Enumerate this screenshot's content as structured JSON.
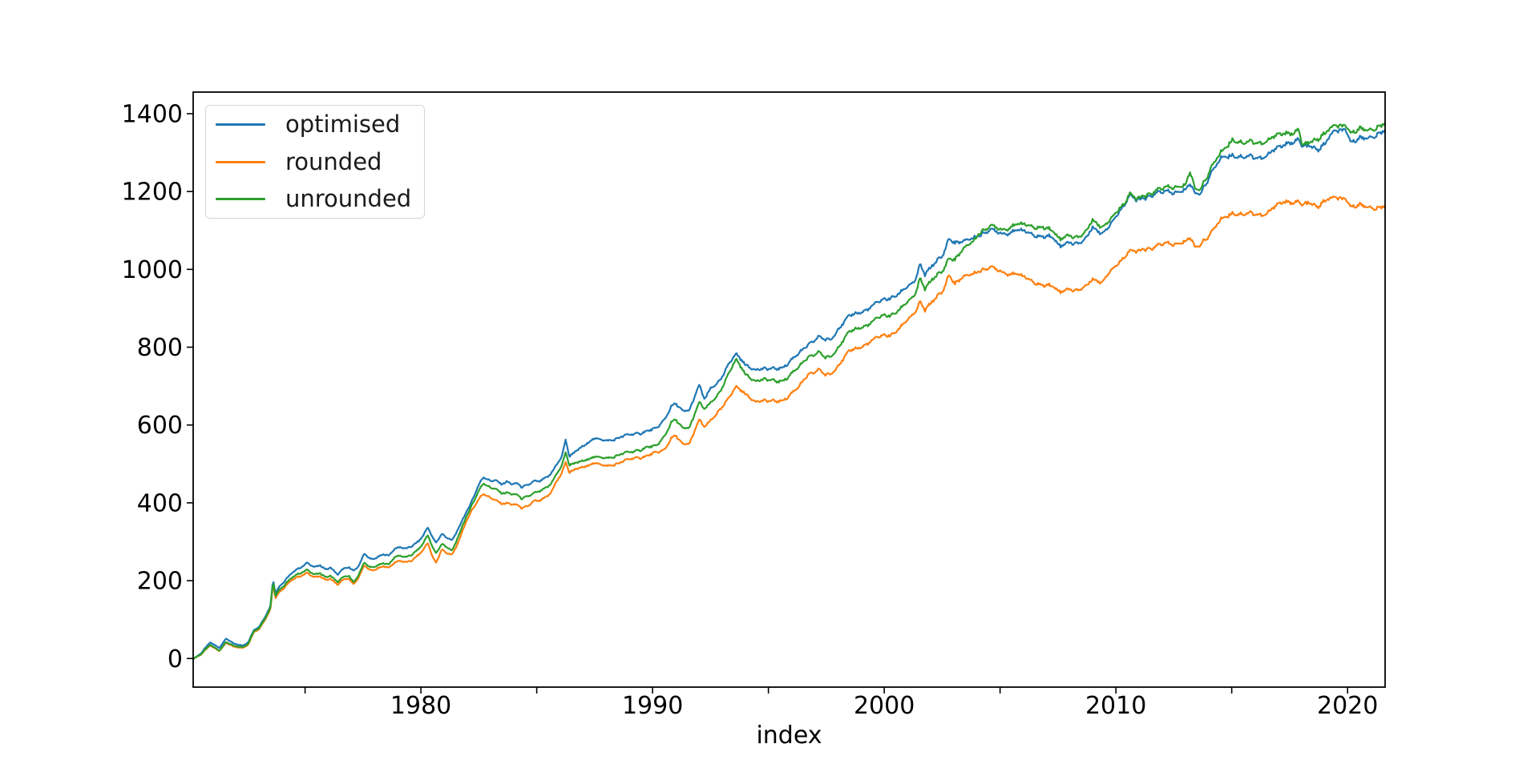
{
  "figure": {
    "background": "#ffffff"
  },
  "chart_data": {
    "type": "line",
    "title": "",
    "xlabel": "index",
    "ylabel": "",
    "grid": false,
    "legend_position": "upper left",
    "axis_color": "#000000",
    "xlim": [
      1970.17,
      2021.62
    ],
    "ylim": [
      -73.5,
      1455.5
    ],
    "xticks_all": [
      1975,
      1980,
      1985,
      1990,
      1995,
      2000,
      2005,
      2010,
      2015,
      2020
    ],
    "xticks_labeled": [
      1980,
      1990,
      2000,
      2010,
      2020
    ],
    "yticks": [
      0,
      200,
      400,
      600,
      800,
      1000,
      1200,
      1400
    ],
    "x": [
      1970.2,
      1970.5,
      1970.9,
      1971.3,
      1971.6,
      1971.9,
      1972.3,
      1972.55,
      1972.8,
      1973.0,
      1973.3,
      1973.5,
      1973.62,
      1973.72,
      1973.9,
      1974.1,
      1974.3,
      1974.6,
      1974.9,
      1975.1,
      1975.4,
      1975.65,
      1975.9,
      1976.1,
      1976.4,
      1976.65,
      1976.9,
      1977.1,
      1977.35,
      1977.55,
      1977.72,
      1977.9,
      1978.1,
      1978.4,
      1978.6,
      1978.85,
      1979.1,
      1979.35,
      1979.6,
      1979.9,
      1980.1,
      1980.3,
      1980.5,
      1980.65,
      1980.9,
      1981.1,
      1981.35,
      1981.6,
      1981.9,
      1982.15,
      1982.45,
      1982.7,
      1983.0,
      1983.2,
      1983.45,
      1983.7,
      1983.95,
      1984.15,
      1984.35,
      1984.6,
      1984.85,
      1985.1,
      1985.35,
      1985.6,
      1985.85,
      1986.1,
      1986.25,
      1986.4,
      1986.65,
      1987.0,
      1987.45,
      1988.0,
      1988.6,
      1989.2,
      1989.75,
      1990.14,
      1990.5,
      1990.8,
      1991.0,
      1991.3,
      1991.6,
      1992.0,
      1992.25,
      1992.5,
      1992.9,
      1993.3,
      1993.6,
      1994.0,
      1994.45,
      1994.9,
      1995.4,
      1995.8,
      1996.3,
      1996.7,
      1997.2,
      1997.45,
      1997.7,
      1998.0,
      1998.5,
      1998.9,
      1999.4,
      1999.9,
      2000.3,
      2000.8,
      2001.3,
      2001.55,
      2001.75,
      2002.05,
      2002.5,
      2002.8,
      2003.05,
      2003.4,
      2003.9,
      2004.1,
      2004.6,
      2005.05,
      2005.5,
      2005.9,
      2006.4,
      2006.85,
      2007.2,
      2007.6,
      2007.9,
      2008.25,
      2008.6,
      2009.0,
      2009.4,
      2009.7,
      2010.0,
      2010.4,
      2010.6,
      2010.85,
      2011.2,
      2011.6,
      2012.1,
      2012.5,
      2013.0,
      2013.2,
      2013.45,
      2013.7,
      2014.1,
      2014.6,
      2015.05,
      2015.5,
      2016.0,
      2016.5,
      2017.2,
      2017.5,
      2017.9,
      2018.05,
      2018.3,
      2018.7,
      2019.0,
      2019.4,
      2019.9,
      2020.15,
      2020.6,
      2020.9,
      2021.3,
      2021.6
    ],
    "series": [
      {
        "name": "optimised",
        "color": "#1f77b4",
        "values": [
          0,
          12,
          42,
          28,
          51,
          38,
          34,
          42,
          74,
          79,
          110,
          135,
          206,
          168,
          186,
          196,
          211,
          229,
          238,
          246,
          233,
          239,
          230,
          235,
          215,
          229,
          234,
          226,
          242,
          271,
          258,
          253,
          259,
          270,
          265,
          280,
          285,
          282,
          290,
          302,
          315,
          336,
          310,
          298,
          322,
          312,
          302,
          330,
          370,
          400,
          440,
          465,
          455,
          461,
          450,
          453,
          446,
          449,
          442,
          447,
          455,
          453,
          461,
          475,
          500,
          520,
          563,
          516,
          531,
          548,
          563,
          561,
          567,
          578,
          584,
          588,
          614,
          649,
          655,
          632,
          639,
          706,
          665,
          690,
          714,
          761,
          780,
          755,
          745,
          741,
          747,
          755,
          782,
          808,
          826,
          816,
          820,
          849,
          878,
          888,
          904,
          918,
          929,
          945,
          965,
          1016,
          990,
          1006,
          1031,
          1084,
          1070,
          1067,
          1084,
          1092,
          1098,
          1094,
          1098,
          1098,
          1092,
          1084,
          1081,
          1063,
          1073,
          1061,
          1071,
          1114,
          1088,
          1108,
          1139,
          1173,
          1190,
          1173,
          1184,
          1194,
          1196,
          1200,
          1204,
          1216,
          1190,
          1204,
          1247,
          1286,
          1298,
          1286,
          1288,
          1292,
          1318,
          1329,
          1333,
          1308,
          1316,
          1312,
          1322,
          1349,
          1363,
          1329,
          1333,
          1339,
          1349,
          1357
        ]
      },
      {
        "name": "rounded",
        "color": "#ff7f0e",
        "values": [
          0,
          9,
          34,
          20,
          40,
          30,
          28,
          36,
          69,
          73,
          103,
          127,
          194,
          156,
          172,
          180,
          194,
          209,
          215,
          220,
          207,
          211,
          203,
          206,
          189,
          201,
          205,
          191,
          213,
          240,
          229,
          224,
          230,
          239,
          234,
          245,
          250,
          247,
          253,
          267,
          278,
          296,
          260,
          246,
          282,
          272,
          265,
          295,
          345,
          378,
          405,
          422,
          412,
          410,
          400,
          398,
          394,
          394,
          388,
          392,
          404,
          403,
          411,
          426,
          457,
          477,
          505,
          475,
          486,
          494,
          500,
          496,
          502,
          516,
          520,
          527,
          537,
          567,
          573,
          547,
          553,
          616,
          594,
          608,
          639,
          673,
          696,
          680,
          663,
          659,
          663,
          669,
          696,
          731,
          741,
          726,
          731,
          755,
          788,
          798,
          816,
          827,
          833,
          857,
          884,
          920,
          898,
          914,
          939,
          990,
          965,
          976,
          992,
          1000,
          1002,
          996,
          990,
          982,
          971,
          959,
          955,
          945,
          953,
          941,
          951,
          980,
          963,
          990,
          1012,
          1037,
          1047,
          1041,
          1053,
          1057,
          1063,
          1067,
          1071,
          1078,
          1053,
          1071,
          1094,
          1129,
          1149,
          1139,
          1143,
          1143,
          1173,
          1176,
          1173,
          1159,
          1169,
          1165,
          1176,
          1180,
          1184,
          1163,
          1161,
          1161,
          1159,
          1163
        ]
      },
      {
        "name": "unrounded",
        "color": "#2ca02c",
        "values": [
          0,
          10,
          36,
          21,
          42,
          32,
          30,
          38,
          71,
          76,
          106,
          131,
          201,
          162,
          178,
          186,
          200,
          216,
          223,
          228,
          214,
          219,
          210,
          214,
          196,
          208,
          212,
          196,
          220,
          248,
          236,
          232,
          238,
          247,
          242,
          259,
          263,
          260,
          268,
          282,
          295,
          316,
          285,
          271,
          296,
          288,
          275,
          310,
          357,
          390,
          425,
          449,
          438,
          439,
          427,
          425,
          420,
          420,
          412,
          418,
          424,
          427,
          435,
          449,
          476,
          497,
          530,
          494,
          502,
          510,
          516,
          516,
          523,
          533,
          543,
          543,
          571,
          608,
          614,
          588,
          594,
          661,
          640,
          653,
          684,
          737,
          766,
          731,
          716,
          714,
          714,
          720,
          747,
          776,
          786,
          770,
          776,
          802,
          837,
          849,
          863,
          878,
          884,
          904,
          929,
          980,
          953,
          971,
          992,
          1033,
          1027,
          1047,
          1078,
          1098,
          1108,
          1104,
          1112,
          1114,
          1112,
          1108,
          1098,
          1081,
          1092,
          1077,
          1088,
          1133,
          1104,
          1122,
          1149,
          1176,
          1194,
          1176,
          1190,
          1200,
          1206,
          1214,
          1216,
          1247,
          1200,
          1216,
          1261,
          1302,
          1339,
          1322,
          1327,
          1329,
          1349,
          1353,
          1357,
          1312,
          1322,
          1339,
          1349,
          1363,
          1373,
          1353,
          1357,
          1359,
          1367,
          1375
        ]
      }
    ]
  }
}
